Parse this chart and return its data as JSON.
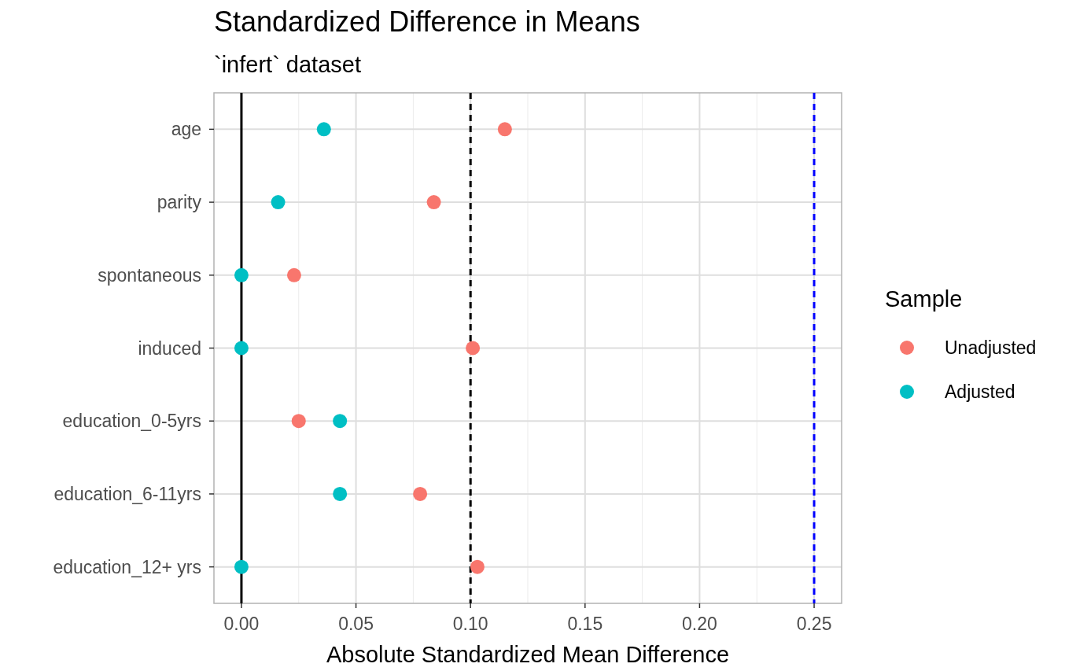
{
  "chart_data": {
    "type": "scatter",
    "title": "Standardized Difference in Means",
    "subtitle": "`infert` dataset",
    "xlabel": "Absolute Standardized Mean Difference",
    "legend_title": "Sample",
    "orientation": "horizontal",
    "categories": [
      "age",
      "parity",
      "spontaneous",
      "induced",
      "education_0-5yrs",
      "education_6-11yrs",
      "education_12+ yrs"
    ],
    "series": [
      {
        "name": "Unadjusted",
        "color": "#f8766d",
        "values": [
          0.115,
          0.084,
          0.023,
          0.101,
          0.025,
          0.078,
          0.103
        ]
      },
      {
        "name": "Adjusted",
        "color": "#00bfc4",
        "values": [
          0.036,
          0.016,
          0,
          0,
          0.043,
          0.043,
          0
        ]
      }
    ],
    "xlim": [
      -0.012,
      0.262
    ],
    "xticks": [
      {
        "value": 0,
        "label": "0.00"
      },
      {
        "value": 0.05,
        "label": "0.05"
      },
      {
        "value": 0.1,
        "label": "0.10"
      },
      {
        "value": 0.15,
        "label": "0.15"
      },
      {
        "value": 0.2,
        "label": "0.20"
      },
      {
        "value": 0.25,
        "label": "0.25"
      }
    ],
    "ref_lines": [
      {
        "axis": "x",
        "value": 0,
        "color": "#000000",
        "line_style": "solid"
      },
      {
        "axis": "x",
        "value": 0.1,
        "color": "#000000",
        "line_style": "dashed"
      },
      {
        "axis": "x",
        "value": 0.25,
        "color": "#0000ff",
        "line_style": "dashed"
      }
    ],
    "grid": true,
    "legend": "right",
    "marker": "circle"
  }
}
